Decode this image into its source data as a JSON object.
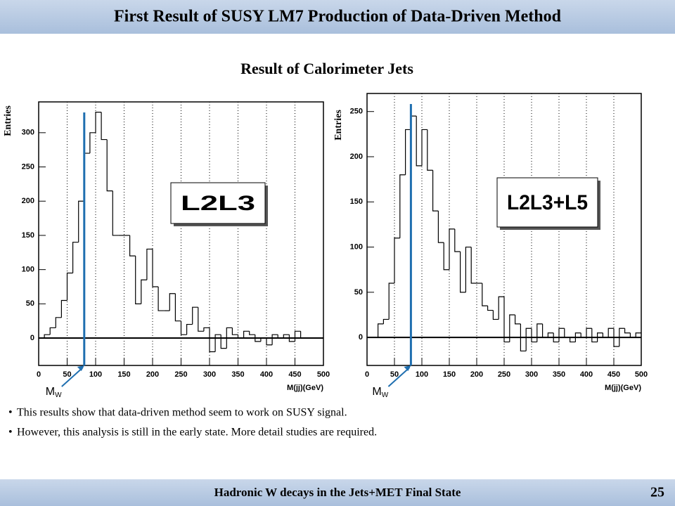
{
  "header": {
    "title": "First  Result of SUSY LM7 Production of Data-Driven Method"
  },
  "subtitle": "Result of Calorimeter Jets",
  "bullets": [
    "This results show that data-driven method seem to work on SUSY signal.",
    "However, this analysis is still in the early state. More detail studies are required."
  ],
  "footer": {
    "text": "Hadronic W decays in the Jets+MET Final State",
    "page": "25"
  },
  "chart_data": [
    {
      "type": "histogram",
      "box_label": "L2L3",
      "x_label": "M(jj)(GeV)",
      "y_label": "Entries",
      "marker": {
        "value": 80,
        "label": "M",
        "sub": "W"
      },
      "color": "#000000",
      "marker_color": "#1f6fb0",
      "grid": true,
      "bins": [
        0,
        10,
        20,
        30,
        40,
        50,
        60,
        70,
        80,
        90,
        100,
        110,
        120,
        130,
        140,
        150,
        160,
        170,
        180,
        190,
        200,
        210,
        220,
        230,
        240,
        250,
        260,
        270,
        280,
        290,
        300,
        310,
        320,
        330,
        340,
        350,
        360,
        370,
        380,
        390,
        400,
        410,
        420,
        430,
        440,
        450,
        460,
        470,
        480,
        490,
        500
      ],
      "values": [
        0,
        5,
        15,
        30,
        55,
        95,
        140,
        200,
        270,
        300,
        330,
        290,
        215,
        150,
        150,
        150,
        120,
        50,
        85,
        130,
        75,
        40,
        40,
        65,
        25,
        5,
        20,
        45,
        10,
        15,
        -20,
        5,
        -15,
        15,
        5,
        0,
        10,
        5,
        -5,
        0,
        -10,
        5,
        0,
        5,
        -5,
        10,
        0,
        0,
        0,
        0
      ],
      "xlim": [
        0,
        500
      ],
      "ylim": [
        -40,
        345
      ],
      "xticks": [
        0,
        50,
        100,
        150,
        200,
        250,
        300,
        350,
        400,
        450,
        500
      ],
      "yticks": [
        0,
        50,
        100,
        150,
        200,
        250,
        300
      ]
    },
    {
      "type": "histogram",
      "box_label": "L2L3+L5",
      "x_label": "M(jj)(GeV)",
      "y_label": "Entries",
      "marker": {
        "value": 80,
        "label": "M",
        "sub": "W"
      },
      "color": "#000000",
      "marker_color": "#1f6fb0",
      "grid": true,
      "bins": [
        0,
        10,
        20,
        30,
        40,
        50,
        60,
        70,
        80,
        90,
        100,
        110,
        120,
        130,
        140,
        150,
        160,
        170,
        180,
        190,
        200,
        210,
        220,
        230,
        240,
        250,
        260,
        270,
        280,
        290,
        300,
        310,
        320,
        330,
        340,
        350,
        360,
        370,
        380,
        390,
        400,
        410,
        420,
        430,
        440,
        450,
        460,
        470,
        480,
        490,
        500
      ],
      "values": [
        0,
        0,
        15,
        20,
        60,
        110,
        180,
        230,
        245,
        190,
        230,
        185,
        140,
        105,
        75,
        120,
        95,
        50,
        100,
        60,
        60,
        35,
        30,
        20,
        45,
        -5,
        25,
        15,
        -15,
        10,
        -5,
        15,
        0,
        5,
        -5,
        10,
        0,
        -5,
        5,
        0,
        10,
        -5,
        5,
        0,
        10,
        -10,
        10,
        5,
        0,
        5
      ],
      "xlim": [
        0,
        500
      ],
      "ylim": [
        -31,
        270
      ],
      "xticks": [
        0,
        50,
        100,
        150,
        200,
        250,
        300,
        350,
        400,
        450,
        500
      ],
      "yticks": [
        0,
        50,
        100,
        150,
        200,
        250
      ]
    }
  ]
}
